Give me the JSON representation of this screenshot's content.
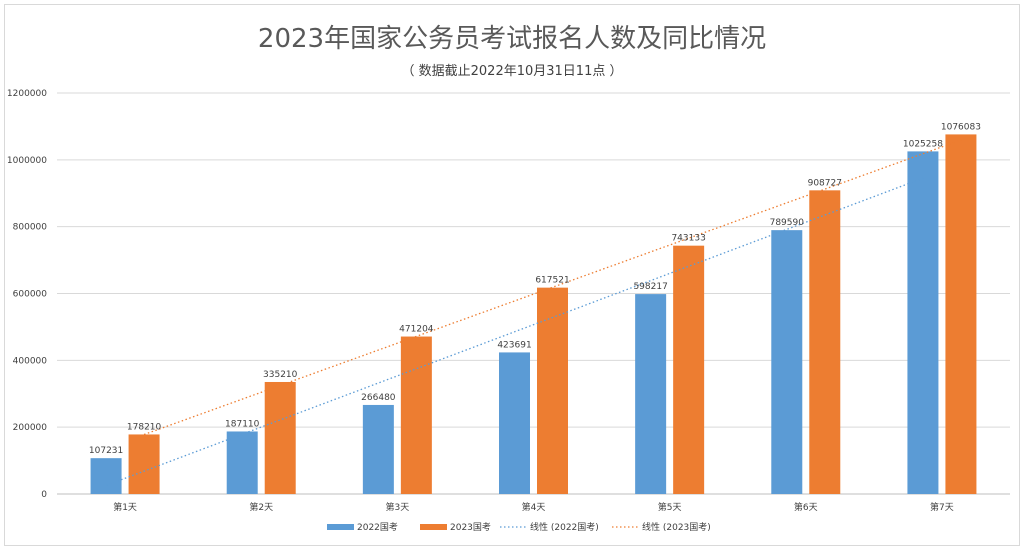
{
  "chart_data": {
    "type": "bar",
    "title": "2023年国家公务员考试报名人数及同比情况",
    "subtitle": "（ 数据截止2022年10月31日11点 ）",
    "categories": [
      "第1天",
      "第2天",
      "第3天",
      "第4天",
      "第5天",
      "第6天",
      "第7天"
    ],
    "series": [
      {
        "name": "2022国考",
        "color": "#5B9BD5",
        "values": [
          107231,
          187110,
          266480,
          423691,
          598217,
          789590,
          1025258
        ]
      },
      {
        "name": "2023国考",
        "color": "#ED7D31",
        "values": [
          178210,
          335210,
          471204,
          617521,
          743133,
          908727,
          1076083
        ]
      }
    ],
    "trendlines": [
      {
        "name": "线性 (2022国考)",
        "of_series": "2022国考",
        "type": "linear",
        "style": "dotted",
        "color": "#5B9BD5"
      },
      {
        "name": "线性 (2023国考)",
        "of_series": "2023国考",
        "type": "linear",
        "style": "dotted",
        "color": "#ED7D31"
      }
    ],
    "yticks": [
      "0",
      "200000",
      "400000",
      "600000",
      "800000",
      "1000000",
      "1200000"
    ],
    "ylim": [
      0,
      1200000
    ],
    "grid": true,
    "legend_position": "bottom",
    "data_labels": true
  }
}
